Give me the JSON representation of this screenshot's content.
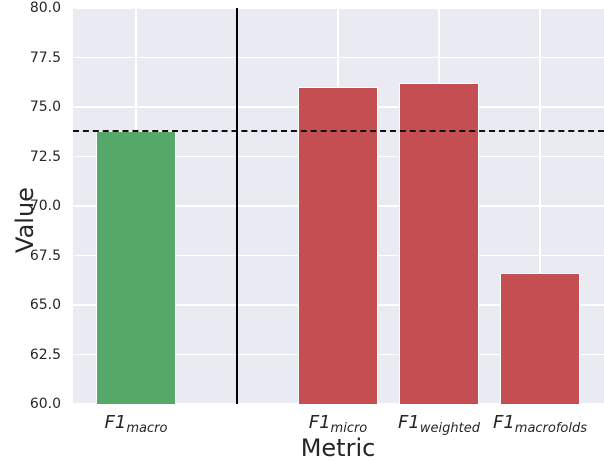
{
  "chart_data": {
    "type": "bar",
    "title": "",
    "xlabel": "Metric",
    "ylabel": "Value",
    "ylim": [
      60.0,
      80.0
    ],
    "yticks": [
      "60.0",
      "62.5",
      "65.0",
      "67.5",
      "70.0",
      "72.5",
      "75.0",
      "77.5",
      "80.0"
    ],
    "categories": [
      "F1_macro",
      "F1_micro",
      "F1_weighted",
      "F1_macrofolds"
    ],
    "category_labels": [
      {
        "main": "F1",
        "sub": "macro"
      },
      {
        "main": "F1",
        "sub": "micro"
      },
      {
        "main": "F1",
        "sub": "weighted"
      },
      {
        "main": "F1",
        "sub": "macrofolds"
      }
    ],
    "values": [
      73.8,
      76.0,
      76.2,
      66.6
    ],
    "bar_colors": [
      "#55a868",
      "#c44e52",
      "#c44e52",
      "#c44e52"
    ],
    "reference_line": {
      "type": "horizontal-dashed",
      "value": 73.8,
      "color": "#111111"
    },
    "separator_line": {
      "type": "vertical-solid",
      "position": "between F1_macro and F1_micro",
      "color": "#000000"
    },
    "grid": true,
    "background": "#eaeaf2",
    "legend": null
  }
}
